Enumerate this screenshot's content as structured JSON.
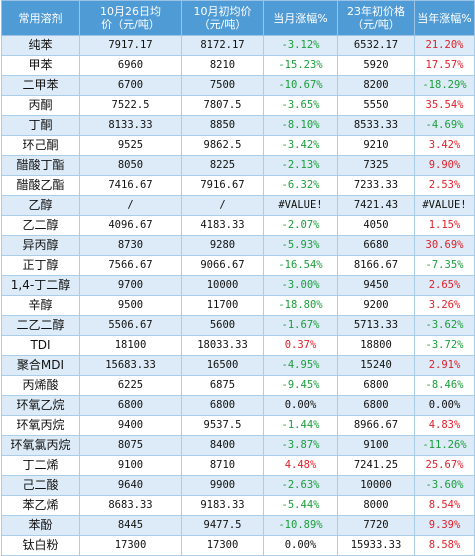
{
  "headers": [
    "常用溶剂",
    "10月26日均价（元/吨）",
    "10月初均价（元/吨）",
    "当月涨幅%",
    "23年初价格（元/吨）",
    "当年涨幅%"
  ],
  "header_lines": [
    [
      "常用溶剂"
    ],
    [
      "10月26日均",
      "价（元/吨）"
    ],
    [
      "10月初均价",
      "（元/吨）"
    ],
    [
      "当月涨幅%"
    ],
    [
      "23年初价格",
      "（元/吨）"
    ],
    [
      "当年涨幅%"
    ]
  ],
  "rows": [
    {
      "name": "纯苯",
      "price_1026": "7917.17",
      "price_oct_start": "8172.17",
      "month_change": "-3.12%",
      "price_year_start": "6532.17",
      "year_change": "21.20%"
    },
    {
      "name": "甲苯",
      "price_1026": "6960",
      "price_oct_start": "8210",
      "month_change": "-15.23%",
      "price_year_start": "5920",
      "year_change": "17.57%"
    },
    {
      "name": "二甲苯",
      "price_1026": "6700",
      "price_oct_start": "7500",
      "month_change": "-10.67%",
      "price_year_start": "8200",
      "year_change": "-18.29%"
    },
    {
      "name": "丙酮",
      "price_1026": "7522.5",
      "price_oct_start": "7807.5",
      "month_change": "-3.65%",
      "price_year_start": "5550",
      "year_change": "35.54%"
    },
    {
      "name": "丁酮",
      "price_1026": "8133.33",
      "price_oct_start": "8850",
      "month_change": "-8.10%",
      "price_year_start": "8533.33",
      "year_change": "-4.69%"
    },
    {
      "name": "环己酮",
      "price_1026": "9525",
      "price_oct_start": "9862.5",
      "month_change": "-3.42%",
      "price_year_start": "9210",
      "year_change": "3.42%"
    },
    {
      "name": "醋酸丁酯",
      "price_1026": "8050",
      "price_oct_start": "8225",
      "month_change": "-2.13%",
      "price_year_start": "7325",
      "year_change": "9.90%"
    },
    {
      "name": "醋酸乙酯",
      "price_1026": "7416.67",
      "price_oct_start": "7916.67",
      "month_change": "-6.32%",
      "price_year_start": "7233.33",
      "year_change": "2.53%"
    },
    {
      "name": "乙醇",
      "price_1026": "/",
      "price_oct_start": "/",
      "month_change": "#VALUE!",
      "price_year_start": "7421.43",
      "year_change": "#VALUE!"
    },
    {
      "name": "乙二醇",
      "price_1026": "4096.67",
      "price_oct_start": "4183.33",
      "month_change": "-2.07%",
      "price_year_start": "4050",
      "year_change": "1.15%"
    },
    {
      "name": "异丙醇",
      "price_1026": "8730",
      "price_oct_start": "9280",
      "month_change": "-5.93%",
      "price_year_start": "6680",
      "year_change": "30.69%"
    },
    {
      "name": "正丁醇",
      "price_1026": "7566.67",
      "price_oct_start": "9066.67",
      "month_change": "-16.54%",
      "price_year_start": "8166.67",
      "year_change": "-7.35%"
    },
    {
      "name": "1,4-丁二醇",
      "price_1026": "9700",
      "price_oct_start": "10000",
      "month_change": "-3.00%",
      "price_year_start": "9450",
      "year_change": "2.65%"
    },
    {
      "name": "辛醇",
      "price_1026": "9500",
      "price_oct_start": "11700",
      "month_change": "-18.80%",
      "price_year_start": "9200",
      "year_change": "3.26%"
    },
    {
      "name": "二乙二醇",
      "price_1026": "5506.67",
      "price_oct_start": "5600",
      "month_change": "-1.67%",
      "price_year_start": "5713.33",
      "year_change": "-3.62%"
    },
    {
      "name": "TDI",
      "price_1026": "18100",
      "price_oct_start": "18033.33",
      "month_change": "0.37%",
      "price_year_start": "18800",
      "year_change": "-3.72%"
    },
    {
      "name": "聚合MDI",
      "price_1026": "15683.33",
      "price_oct_start": "16500",
      "month_change": "-4.95%",
      "price_year_start": "15240",
      "year_change": "2.91%"
    },
    {
      "name": "丙烯酸",
      "price_1026": "6225",
      "price_oct_start": "6875",
      "month_change": "-9.45%",
      "price_year_start": "6800",
      "year_change": "-8.46%"
    },
    {
      "name": "环氧乙烷",
      "price_1026": "6800",
      "price_oct_start": "6800",
      "month_change": "0.00%",
      "price_year_start": "6800",
      "year_change": "0.00%"
    },
    {
      "name": "环氧丙烷",
      "price_1026": "9400",
      "price_oct_start": "9537.5",
      "month_change": "-1.44%",
      "price_year_start": "8966.67",
      "year_change": "4.83%"
    },
    {
      "name": "环氧氯丙烷",
      "price_1026": "8075",
      "price_oct_start": "8400",
      "month_change": "-3.87%",
      "price_year_start": "9100",
      "year_change": "-11.26%"
    },
    {
      "name": "丁二烯",
      "price_1026": "9100",
      "price_oct_start": "8710",
      "month_change": "4.48%",
      "price_year_start": "7241.25",
      "year_change": "25.67%"
    },
    {
      "name": "己二酸",
      "price_1026": "9640",
      "price_oct_start": "9900",
      "month_change": "-2.63%",
      "price_year_start": "10000",
      "year_change": "-3.60%"
    },
    {
      "name": "苯乙烯",
      "price_1026": "8683.33",
      "price_oct_start": "9183.33",
      "month_change": "-5.44%",
      "price_year_start": "8000",
      "year_change": "8.54%"
    },
    {
      "name": "苯酚",
      "price_1026": "8445",
      "price_oct_start": "9477.5",
      "month_change": "-10.89%",
      "price_year_start": "7720",
      "year_change": "9.39%"
    },
    {
      "name": "钛白粉",
      "price_1026": "17300",
      "price_oct_start": "17300",
      "month_change": "0.00%",
      "price_year_start": "15933.33",
      "year_change": "8.58%"
    }
  ],
  "colors": {
    "header_bg": "#4f9bd6",
    "band": "#dcebf7",
    "negative": "#1a9e3a",
    "positive": "#e0202a"
  }
}
